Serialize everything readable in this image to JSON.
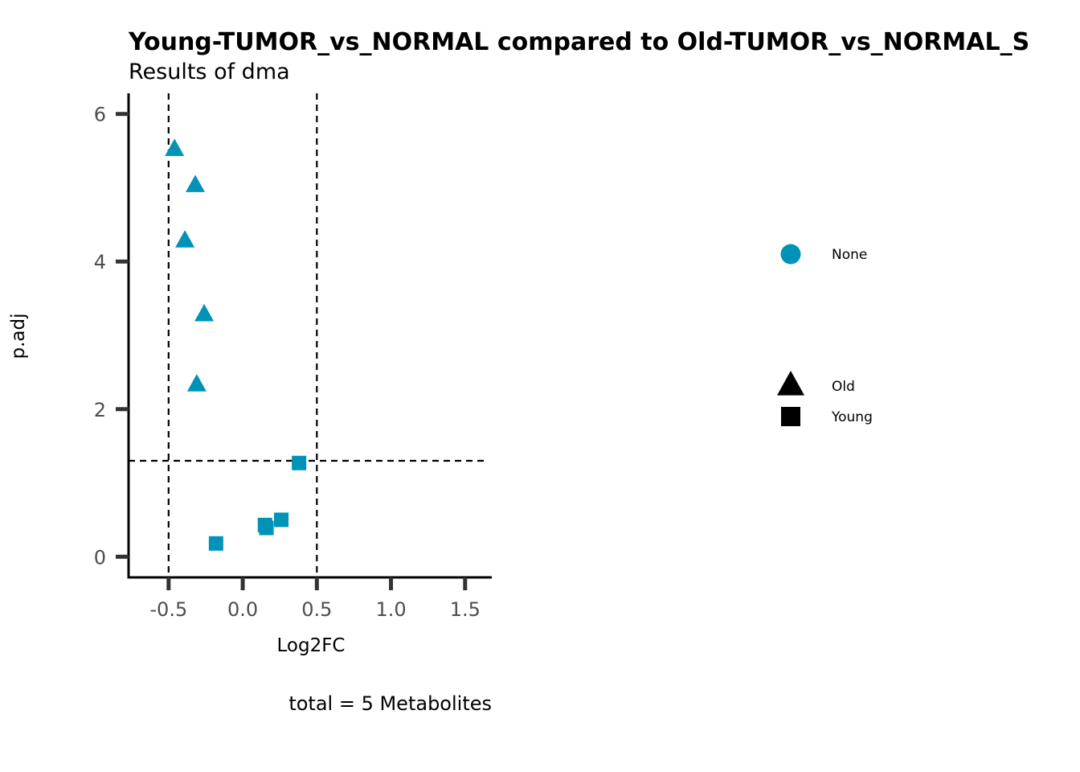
{
  "chart_data": {
    "type": "scatter",
    "title": "Young-TUMOR_vs_NORMAL compared to Old-TUMOR_vs_NORMAL_S",
    "subtitle": "Results of dma",
    "xlabel": "Log2FC",
    "ylabel": "p.adj",
    "caption": "total = 5 Metabolites",
    "xlim": [
      -0.77,
      1.68
    ],
    "ylim": [
      -0.28,
      6.28
    ],
    "xticks": [
      -0.5,
      0.0,
      0.5,
      1.0,
      1.5
    ],
    "xtick_labels": [
      "-0.5",
      "0.0",
      "0.5",
      "1.0",
      "1.5"
    ],
    "yticks": [
      0,
      2,
      4,
      6
    ],
    "ytick_labels": [
      "0",
      "2",
      "4",
      "6"
    ],
    "reference_lines": {
      "vertical": [
        -0.5,
        0.5
      ],
      "horizontal": [
        1.3
      ]
    },
    "point_color": "#0093b8",
    "series": [
      {
        "name": "Old",
        "shape": "triangle",
        "points": [
          {
            "x": -0.46,
            "y": 5.52
          },
          {
            "x": -0.32,
            "y": 5.03
          },
          {
            "x": -0.39,
            "y": 4.28
          },
          {
            "x": -0.26,
            "y": 3.28
          },
          {
            "x": -0.31,
            "y": 2.33
          }
        ]
      },
      {
        "name": "Young",
        "shape": "square",
        "points": [
          {
            "x": 0.38,
            "y": 1.27
          },
          {
            "x": 0.26,
            "y": 0.5
          },
          {
            "x": 0.15,
            "y": 0.43
          },
          {
            "x": 0.16,
            "y": 0.39
          },
          {
            "x": -0.18,
            "y": 0.18
          }
        ]
      }
    ],
    "legend": {
      "color_items": [
        {
          "label": "None",
          "color": "#0093b8"
        }
      ],
      "shape_items": [
        {
          "label": "Old",
          "shape": "triangle"
        },
        {
          "label": "Young",
          "shape": "square"
        }
      ]
    }
  }
}
